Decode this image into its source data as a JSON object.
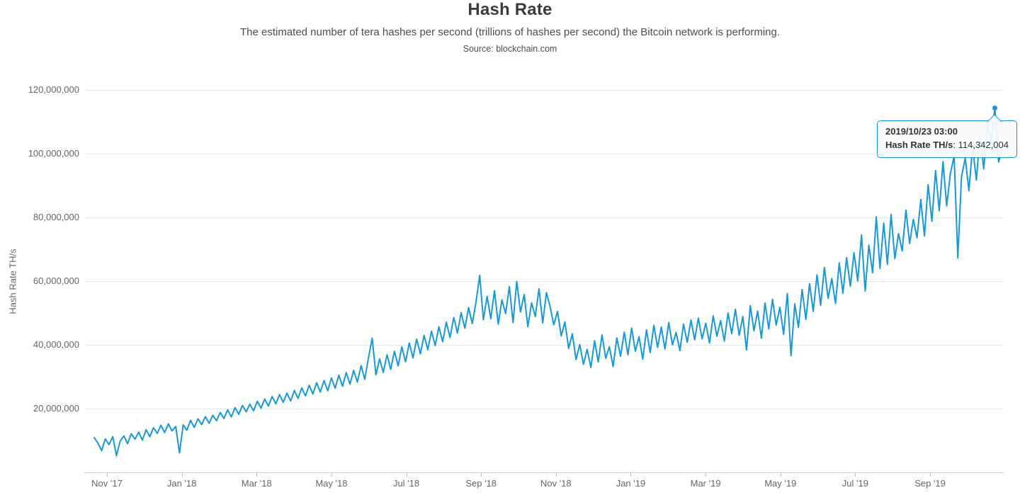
{
  "header": {
    "title": "Hash Rate",
    "subtitle": "The estimated number of tera hashes per second (trillions of hashes per second) the Bitcoin network is performing.",
    "source": "Source: blockchain.com"
  },
  "y_axis": {
    "title": "Hash Rate TH/s",
    "tick_labels": [
      "20,000,000",
      "40,000,000",
      "60,000,000",
      "80,000,000",
      "100,000,000",
      "120,000,000"
    ]
  },
  "x_axis": {
    "tick_labels": [
      "Nov '17",
      "Jan '18",
      "Mar '18",
      "May '18",
      "Jul '18",
      "Sep '18",
      "Nov '18",
      "Jan '19",
      "Mar '19",
      "May '19",
      "Jul '19",
      "Sep '19"
    ]
  },
  "tooltip": {
    "title": "2019/10/23 03:00",
    "series_label": "Hash Rate TH/s",
    "separator": ": ",
    "value": "114,342,004"
  },
  "colors": {
    "line": "#1699d6",
    "grid": "#e6e6e6",
    "axis_line": "#ccd6eb",
    "tick": "#b7c0cc",
    "tooltip_border": "#1699d6",
    "tooltip_bg": "#f7f9fc",
    "text_dark": "#333333",
    "text_gray": "#666666"
  },
  "chart_data": {
    "type": "line",
    "title": "Hash Rate",
    "subtitle": "The estimated number of tera hashes per second (trillions of hashes per second) the Bitcoin network is performing.",
    "source": "Source: blockchain.com",
    "ylabel": "Hash Rate TH/s",
    "unit": "TH/s",
    "value_multiplier": 1000000,
    "x_start": "2017-10-22",
    "x_end": "2019-10-26",
    "x_step_days": 3,
    "x_tick_labels": [
      "Nov '17",
      "Jan '18",
      "Mar '18",
      "May '18",
      "Jul '18",
      "Sep '18",
      "Nov '18",
      "Jan '19",
      "Mar '19",
      "May '19",
      "Jul '19",
      "Sep '19"
    ],
    "y_ticks_millions": [
      20,
      40,
      60,
      80,
      100,
      120
    ],
    "ylim_millions": [
      0,
      125
    ],
    "grid": true,
    "legend": false,
    "values_millions": [
      10.9,
      9.2,
      6.8,
      10.5,
      8.7,
      11.2,
      5.2,
      9.8,
      11.4,
      9.0,
      12.1,
      10.4,
      12.6,
      10.1,
      13.4,
      11.2,
      14.0,
      12.2,
      14.8,
      12.5,
      15.2,
      13.0,
      14.4,
      6.1,
      14.9,
      13.2,
      16.3,
      14.1,
      16.8,
      15.0,
      17.5,
      15.4,
      17.9,
      16.2,
      18.8,
      16.9,
      19.6,
      17.4,
      20.3,
      18.2,
      21.0,
      19.0,
      21.4,
      19.3,
      22.3,
      20.1,
      23.0,
      20.8,
      23.8,
      21.5,
      24.4,
      22.0,
      24.9,
      22.4,
      25.7,
      23.2,
      26.5,
      24.0,
      27.3,
      24.6,
      28.1,
      25.2,
      28.8,
      25.6,
      29.6,
      26.4,
      30.5,
      27.0,
      31.3,
      27.7,
      32.0,
      28.3,
      33.5,
      29.2,
      36.0,
      42.1,
      30.6,
      35.6,
      31.4,
      36.9,
      32.3,
      38.0,
      33.4,
      39.4,
      34.7,
      40.6,
      35.9,
      41.8,
      37.2,
      43.0,
      38.5,
      44.3,
      39.8,
      45.7,
      41.0,
      47.1,
      42.3,
      48.6,
      43.7,
      50.1,
      45.2,
      51.7,
      46.7,
      53.4,
      61.8,
      47.9,
      55.2,
      48.2,
      57.0,
      46.5,
      54.1,
      49.8,
      58.3,
      47.0,
      59.9,
      50.3,
      55.8,
      45.7,
      53.2,
      48.9,
      57.6,
      46.9,
      56.4,
      52.0,
      46.3,
      50.5,
      42.8,
      47.2,
      38.9,
      43.5,
      35.4,
      40.1,
      33.9,
      38.6,
      32.9,
      41.3,
      34.6,
      43.1,
      35.8,
      39.4,
      33.2,
      42.2,
      36.4,
      44.0,
      36.9,
      45.3,
      38.0,
      42.6,
      35.5,
      44.7,
      37.6,
      46.1,
      39.2,
      45.6,
      38.7,
      47.0,
      40.0,
      43.9,
      38.2,
      46.5,
      40.8,
      47.8,
      41.6,
      48.4,
      41.9,
      46.8,
      40.6,
      49.1,
      42.7,
      47.6,
      41.2,
      50.0,
      43.5,
      51.2,
      43.0,
      48.9,
      38.4,
      52.3,
      44.4,
      50.6,
      42.1,
      53.1,
      45.0,
      54.3,
      46.2,
      51.8,
      43.3,
      56.1,
      36.6,
      52.9,
      45.5,
      57.4,
      48.0,
      59.2,
      50.5,
      62.0,
      52.4,
      64.3,
      54.6,
      60.8,
      53.0,
      65.7,
      56.2,
      67.4,
      58.4,
      68.9,
      60.1,
      74.5,
      56.9,
      71.3,
      62.6,
      80.2,
      64.0,
      78.2,
      65.3,
      80.9,
      67.1,
      74.9,
      69.5,
      82.3,
      71.8,
      79.4,
      73.6,
      85.6,
      74.2,
      90.3,
      78.8,
      94.7,
      82.1,
      97.5,
      83.6,
      93.8,
      99.2,
      67.3,
      92.8,
      98.6,
      88.4,
      102.3,
      91.7,
      105.8,
      95.2,
      108.9,
      103.4,
      114.342004,
      97.4,
      101.2
    ],
    "highlight": {
      "index": 243,
      "datetime": "2019/10/23 03:00",
      "value_ths": 114342004
    }
  }
}
